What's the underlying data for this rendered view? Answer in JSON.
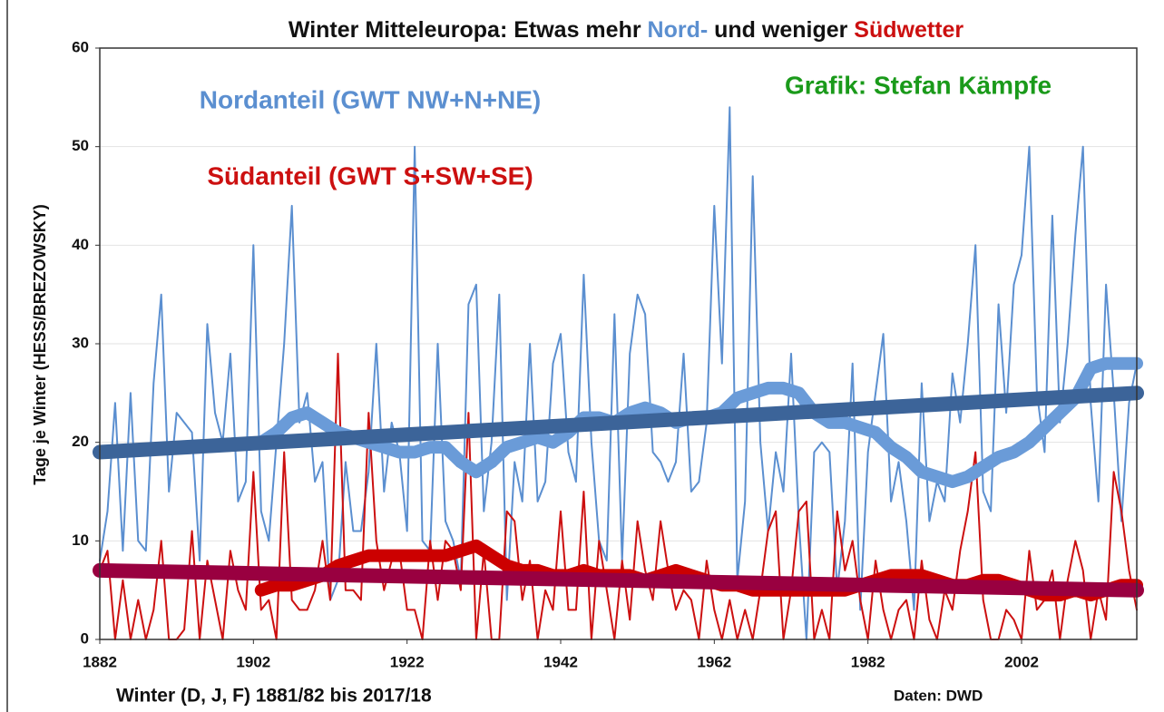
{
  "chart_data": {
    "type": "line",
    "title_parts": [
      {
        "text": "Winter Mitteleuropa: Etwas mehr ",
        "color": "#111111"
      },
      {
        "text": "Nord-",
        "color": "#5b8fd0"
      },
      {
        "text": " und weniger ",
        "color": "#111111"
      },
      {
        "text": "Südwetter",
        "color": "#cc1010"
      }
    ],
    "y_label": "Tage je Winter (HESS/BREZOWSKY)",
    "x_label": "Winter  (D, J, F) 1881/82 bis 2017/18",
    "source": "Daten: DWD",
    "credit": {
      "text": "Grafik: Stefan Kämpfe",
      "color": "#1a9a1a"
    },
    "xlim": [
      1882,
      2017
    ],
    "xticks": [
      1882,
      1902,
      1922,
      1942,
      1962,
      1982,
      2002
    ],
    "ylim": [
      0,
      60
    ],
    "yticks": [
      0,
      10,
      20,
      30,
      40,
      50,
      60
    ],
    "grid": true,
    "x": [
      1882,
      1883,
      1884,
      1885,
      1886,
      1887,
      1888,
      1889,
      1890,
      1891,
      1892,
      1893,
      1894,
      1895,
      1896,
      1897,
      1898,
      1899,
      1900,
      1901,
      1902,
      1903,
      1904,
      1905,
      1906,
      1907,
      1908,
      1909,
      1910,
      1911,
      1912,
      1913,
      1914,
      1915,
      1916,
      1917,
      1918,
      1919,
      1920,
      1921,
      1922,
      1923,
      1924,
      1925,
      1926,
      1927,
      1928,
      1929,
      1930,
      1931,
      1932,
      1933,
      1934,
      1935,
      1936,
      1937,
      1938,
      1939,
      1940,
      1941,
      1942,
      1943,
      1944,
      1945,
      1946,
      1947,
      1948,
      1949,
      1950,
      1951,
      1952,
      1953,
      1954,
      1955,
      1956,
      1957,
      1958,
      1959,
      1960,
      1961,
      1962,
      1963,
      1964,
      1965,
      1966,
      1967,
      1968,
      1969,
      1970,
      1971,
      1972,
      1973,
      1974,
      1975,
      1976,
      1977,
      1978,
      1979,
      1980,
      1981,
      1982,
      1983,
      1984,
      1985,
      1986,
      1987,
      1988,
      1989,
      1990,
      1991,
      1992,
      1993,
      1994,
      1995,
      1996,
      1997,
      1998,
      1999,
      2000,
      2001,
      2002,
      2003,
      2004,
      2005,
      2006,
      2007,
      2008,
      2009,
      2010,
      2011,
      2012,
      2013,
      2014,
      2015,
      2016,
      2017
    ],
    "series": [
      {
        "name": "Nordanteil (GWT NW+N+NE)",
        "color": "#5b8fd0",
        "width": 2,
        "values": [
          8,
          13,
          24,
          9,
          25,
          10,
          9,
          26,
          35,
          15,
          23,
          22,
          21,
          8,
          32,
          23,
          20,
          29,
          14,
          16,
          40,
          13,
          10,
          20,
          30,
          44,
          22,
          25,
          16,
          18,
          4,
          6,
          18,
          11,
          11,
          17,
          30,
          15,
          22,
          19,
          11,
          50,
          10,
          9,
          30,
          12,
          10,
          6,
          34,
          36,
          13,
          20,
          35,
          4,
          18,
          14,
          30,
          14,
          16,
          28,
          31,
          19,
          16,
          37,
          20,
          10,
          8,
          33,
          8,
          29,
          35,
          33,
          19,
          18,
          16,
          18,
          29,
          15,
          16,
          22,
          44,
          28,
          54,
          6,
          14,
          47,
          20,
          11,
          19,
          15,
          29,
          12,
          0,
          19,
          20,
          19,
          5,
          12,
          28,
          3,
          19,
          25,
          31,
          14,
          18,
          12,
          3,
          26,
          12,
          16,
          14,
          27,
          22,
          30,
          40,
          15,
          13,
          34,
          23,
          36,
          39,
          50,
          25,
          19,
          43,
          22,
          30,
          41,
          50,
          24,
          14,
          36,
          25,
          12,
          24,
          28
        ]
      },
      {
        "name": "Südanteil (GWT S+SW+SE)",
        "color": "#cc1010",
        "width": 2,
        "values": [
          7,
          9,
          0,
          6,
          0,
          4,
          0,
          3,
          10,
          0,
          0,
          1,
          11,
          0,
          8,
          4,
          0,
          9,
          5,
          3,
          17,
          3,
          4,
          0,
          19,
          4,
          3,
          3,
          5,
          10,
          4,
          29,
          5,
          5,
          4,
          23,
          10,
          5,
          8,
          9,
          3,
          3,
          0,
          10,
          4,
          10,
          9,
          5,
          23,
          0,
          9,
          0,
          0,
          13,
          12,
          4,
          8,
          0,
          5,
          3,
          13,
          3,
          3,
          15,
          0,
          10,
          5,
          0,
          8,
          2,
          12,
          7,
          4,
          12,
          7,
          3,
          5,
          4,
          0,
          8,
          3,
          0,
          4,
          0,
          3,
          0,
          5,
          11,
          13,
          0,
          5,
          13,
          14,
          0,
          3,
          0,
          13,
          7,
          10,
          4,
          0,
          8,
          3,
          0,
          3,
          4,
          0,
          8,
          2,
          0,
          5,
          3,
          9,
          13,
          19,
          4,
          0,
          0,
          3,
          2,
          0,
          9,
          3,
          4,
          7,
          0,
          6,
          10,
          7,
          0,
          5,
          2,
          17,
          13,
          7,
          3
        ]
      },
      {
        "color": "#6a9bd8",
        "width": 14,
        "x": [
          1903,
          1905,
          1907,
          1909,
          1911,
          1913,
          1915,
          1917,
          1919,
          1921,
          1923,
          1925,
          1927,
          1929,
          1931,
          1933,
          1935,
          1937,
          1939,
          1941,
          1943,
          1945,
          1947,
          1949,
          1951,
          1953,
          1955,
          1957,
          1959,
          1961,
          1963,
          1965,
          1967,
          1969,
          1971,
          1973,
          1975,
          1977,
          1979,
          1981,
          1983,
          1985,
          1987,
          1989,
          1991,
          1993,
          1995,
          1997,
          1999,
          2001,
          2003,
          2005,
          2007,
          2009,
          2011,
          2013,
          2015,
          2017
        ],
        "values": [
          20,
          21,
          22.5,
          23,
          22,
          21,
          20.5,
          20,
          19.5,
          19,
          19,
          19.5,
          19.5,
          18,
          17,
          18,
          19.5,
          20,
          20.5,
          20,
          21,
          22.5,
          22.5,
          22,
          23,
          23.5,
          23,
          22,
          22.5,
          22.5,
          23,
          24.5,
          25,
          25.5,
          25.5,
          25,
          23,
          22,
          22,
          21.5,
          21,
          19.5,
          18.5,
          17,
          16.5,
          16,
          16.5,
          17.5,
          18.5,
          19,
          20,
          21.5,
          23,
          24.5,
          27.5,
          28,
          28,
          28
        ]
      },
      {
        "color": "#cc0000",
        "width": 14,
        "x": [
          1903,
          1905,
          1907,
          1909,
          1911,
          1913,
          1915,
          1917,
          1919,
          1921,
          1923,
          1925,
          1927,
          1929,
          1931,
          1933,
          1935,
          1937,
          1939,
          1941,
          1943,
          1945,
          1947,
          1949,
          1951,
          1953,
          1955,
          1957,
          1959,
          1961,
          1963,
          1965,
          1967,
          1969,
          1971,
          1973,
          1975,
          1977,
          1979,
          1981,
          1983,
          1985,
          1987,
          1989,
          1991,
          1993,
          1995,
          1997,
          1999,
          2001,
          2003,
          2005,
          2007,
          2009,
          2011,
          2013,
          2015,
          2017
        ],
        "values": [
          5,
          5.5,
          5.5,
          6,
          6.5,
          7.5,
          8,
          8.5,
          8.5,
          8.5,
          8.5,
          8.5,
          8.5,
          9,
          9.5,
          8.5,
          7.5,
          7,
          7,
          6.5,
          6.5,
          7,
          6.5,
          6.5,
          6.5,
          6,
          6.5,
          7,
          6.5,
          6,
          5.5,
          5.5,
          5,
          5,
          5,
          5,
          5,
          5,
          5,
          5.5,
          6,
          6.5,
          6.5,
          6.5,
          6,
          5.5,
          5.5,
          6,
          6,
          5.5,
          5,
          4.5,
          4.5,
          5,
          4.5,
          5,
          5.5,
          5.5
        ]
      },
      {
        "color": "#3c6499",
        "width": 16,
        "x": [
          1882,
          2017
        ],
        "values": [
          19,
          25
        ]
      },
      {
        "color": "#990040",
        "width": 16,
        "x": [
          1882,
          2017
        ],
        "values": [
          7,
          5
        ]
      }
    ]
  }
}
